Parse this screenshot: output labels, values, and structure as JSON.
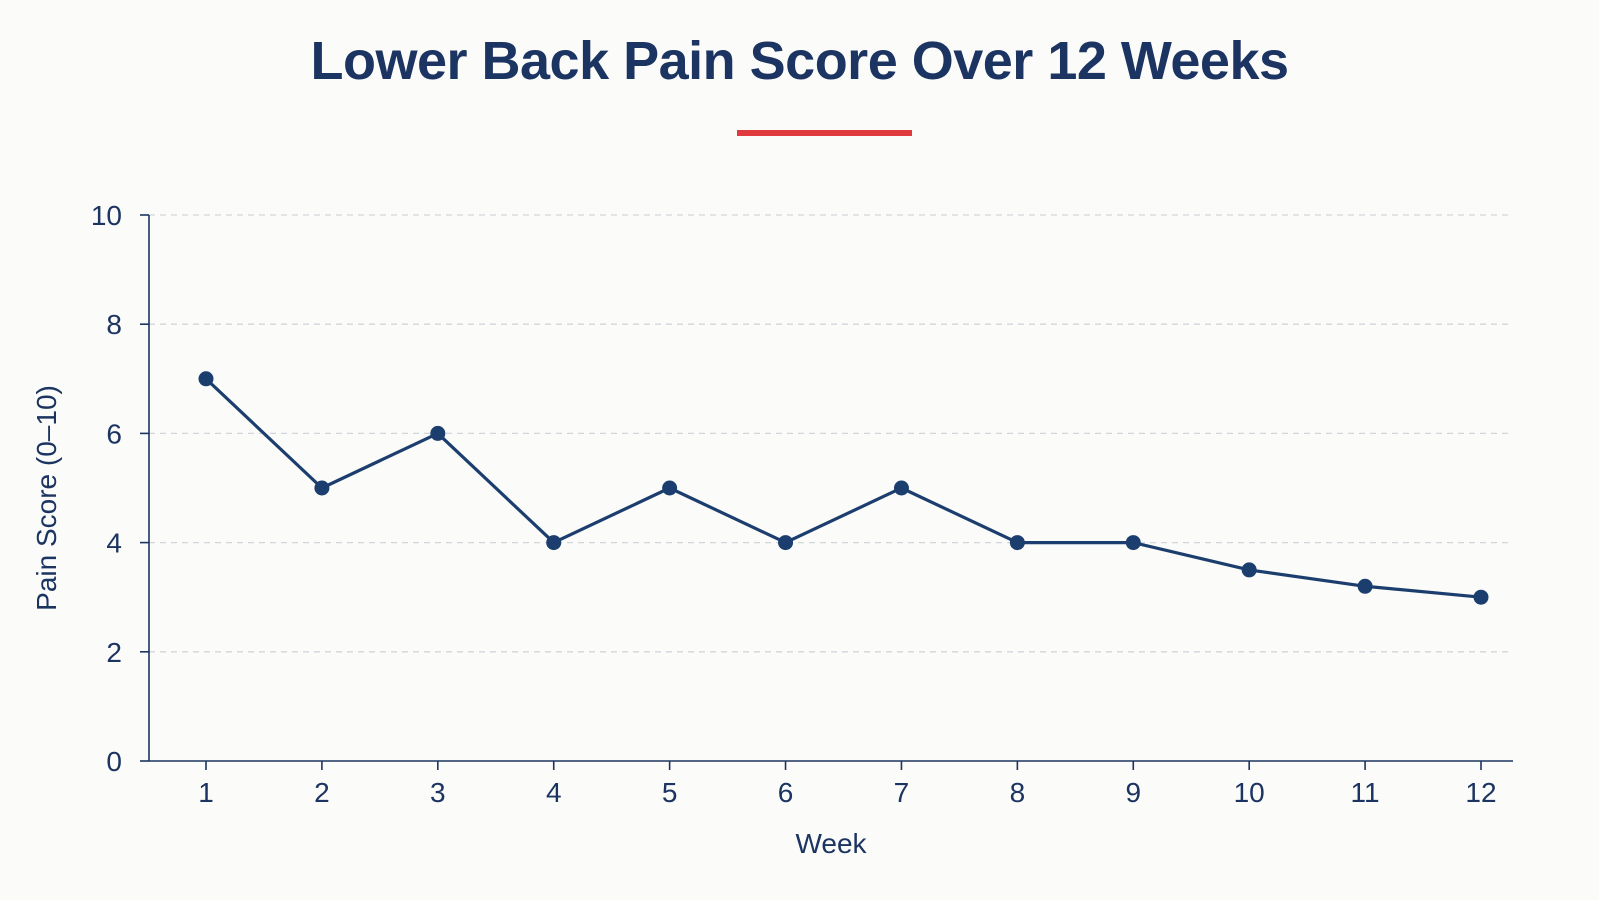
{
  "colors": {
    "background": "#fbfbf9",
    "title": "#1c3461",
    "accent": "#e0393e",
    "series": "#1c3e6e",
    "grid": "#d2d6da",
    "axis": "#1c3461"
  },
  "chart_data": {
    "type": "line",
    "title": "Lower Back Pain Score Over 12 Weeks",
    "xlabel": "Week",
    "ylabel": "Pain Score (0–10)",
    "x": [
      1,
      2,
      3,
      4,
      5,
      6,
      7,
      8,
      9,
      10,
      11,
      12
    ],
    "x_tick_labels": [
      "1",
      "2",
      "3",
      "4",
      "5",
      "6",
      "7",
      "8",
      "9",
      "10",
      "11",
      "12"
    ],
    "y_ticks": [
      0,
      2,
      4,
      6,
      8,
      10
    ],
    "y_tick_labels": [
      "0",
      "2",
      "4",
      "6",
      "8",
      "10"
    ],
    "ylim": [
      0,
      10
    ],
    "grid": true,
    "grid_style": "dashed horizontal",
    "legend": false,
    "series": [
      {
        "values": [
          7,
          5,
          6,
          4,
          5,
          4,
          5,
          4,
          4,
          3.5,
          3.2,
          3.0
        ],
        "marker": "circle"
      }
    ]
  }
}
